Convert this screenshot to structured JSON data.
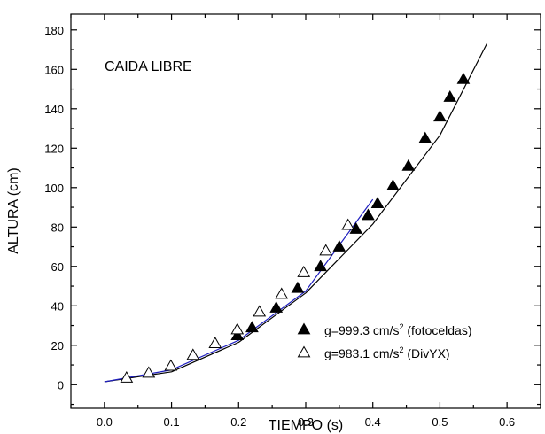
{
  "chart_data": {
    "type": "scatter",
    "title": "",
    "xlabel": "TIEMPO (s)",
    "ylabel": "ALTURA (cm)",
    "xlim": [
      -0.05,
      0.65
    ],
    "ylim": [
      -12,
      188
    ],
    "xticks": [
      0.0,
      0.1,
      0.2,
      0.3,
      0.4,
      0.5,
      0.6
    ],
    "xtick_labels": [
      "0.0",
      "0.1",
      "0.2",
      "0.3",
      "0.4",
      "0.5",
      "0.6"
    ],
    "yticks": [
      0,
      20,
      40,
      60,
      80,
      100,
      120,
      140,
      160,
      180
    ],
    "ytick_labels": [
      "0",
      "20",
      "40",
      "60",
      "80",
      "100",
      "120",
      "140",
      "160",
      "180"
    ],
    "grid": false,
    "legend_position": "bottom-right",
    "annotation": "CAIDA LIBRE",
    "series": [
      {
        "name": "g=999.3 cm/s² (fotoceldas)",
        "legend_main": "g=999.3 cm/s",
        "legend_sup": "2",
        "legend_rest": " (fotoceldas)",
        "marker": "filled-triangle",
        "color": "#000000",
        "x": [
          0.198,
          0.22,
          0.256,
          0.288,
          0.322,
          0.35,
          0.375,
          0.393,
          0.407,
          0.43,
          0.453,
          0.478,
          0.5,
          0.515,
          0.535
        ],
        "y": [
          25,
          29,
          39,
          49,
          60,
          70,
          79,
          86,
          92,
          101,
          111,
          125,
          136,
          146,
          155
        ]
      },
      {
        "name": "g=983.1 cm/s² (DivYX)",
        "legend_main": "g=983.1 cm/s",
        "legend_sup": "2",
        "legend_rest": " (DivYX)",
        "marker": "open-triangle",
        "color": "#000000",
        "x": [
          0.033,
          0.066,
          0.099,
          0.132,
          0.165,
          0.198,
          0.231,
          0.264,
          0.297,
          0.33,
          0.363
        ],
        "y": [
          3.5,
          6,
          9.5,
          15,
          21,
          28,
          37,
          46,
          57,
          68,
          81
        ]
      }
    ],
    "fits": [
      {
        "color": "#000000",
        "x": [
          0.0,
          0.1,
          0.2,
          0.3,
          0.4,
          0.5,
          0.57
        ],
        "y": [
          1.5,
          6.5,
          21.5,
          46.5,
          81.5,
          126.5,
          173
        ]
      },
      {
        "color": "#1f1fbf",
        "x": [
          0.0,
          0.1,
          0.2,
          0.3,
          0.4
        ],
        "y": [
          1.5,
          7.5,
          22.5,
          47.5,
          94
        ]
      }
    ]
  }
}
